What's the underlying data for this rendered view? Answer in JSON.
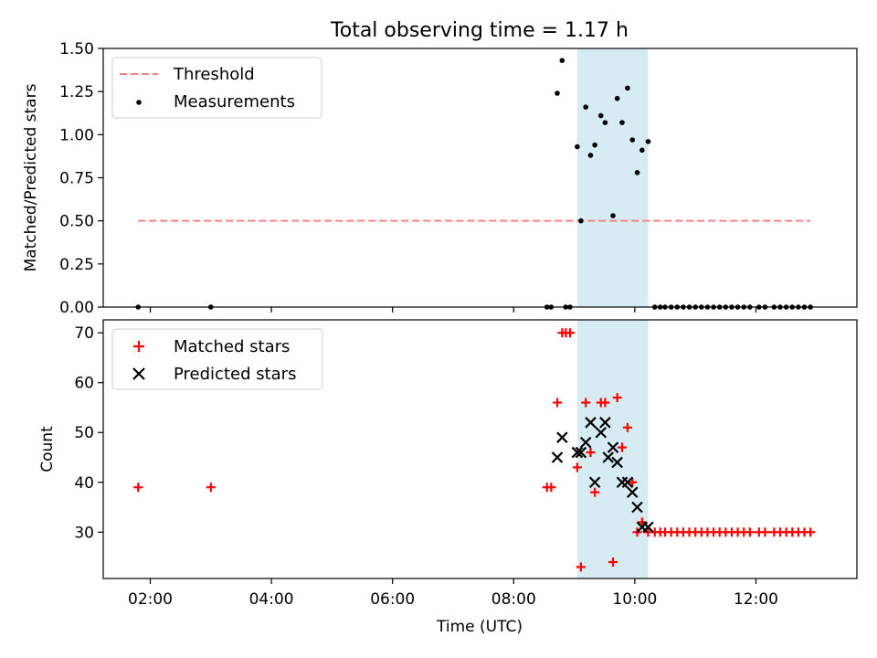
{
  "figure": {
    "title": "Total observing time = 1.17 h"
  },
  "chart_data": [
    {
      "type": "scatter",
      "ylabel": "Matched/Predicted stars",
      "xlabel": "",
      "ylim": [
        0,
        1.5
      ],
      "xlim_hours": [
        1.223,
        13.667
      ],
      "yticks": [
        0,
        0.25,
        0.5,
        0.75,
        1.0,
        1.25,
        1.5
      ],
      "ytick_labels": [
        "0.00",
        "0.25",
        "0.50",
        "0.75",
        "1.00",
        "1.25",
        "1.50"
      ],
      "legend": {
        "placement": "upper-left",
        "entries": [
          "Threshold",
          "Measurements"
        ]
      },
      "grid": false,
      "shaded_interval_hours": [
        9.05,
        10.22
      ],
      "threshold": {
        "name": "Threshold",
        "y": 0.5,
        "x_range_hours": [
          1.8,
          12.9
        ],
        "color": "#ff8080",
        "style": "dashed"
      },
      "series": [
        {
          "name": "Measurements",
          "marker": "dot",
          "color": "#000000",
          "x_hours": [
            1.8,
            3.0,
            8.55,
            8.62,
            8.72,
            8.8,
            8.86,
            8.93,
            9.05,
            9.11,
            9.19,
            9.27,
            9.34,
            9.44,
            9.51,
            9.64,
            9.71,
            9.79,
            9.88,
            9.96,
            10.04,
            10.12,
            10.22,
            10.33,
            10.42,
            10.5,
            10.6,
            10.7,
            10.8,
            10.9,
            11.0,
            11.1,
            11.2,
            11.3,
            11.4,
            11.5,
            11.6,
            11.7,
            11.8,
            11.9,
            12.05,
            12.15,
            12.3,
            12.4,
            12.5,
            12.6,
            12.7,
            12.8,
            12.9
          ],
          "y": [
            0,
            0,
            0,
            0,
            1.24,
            1.43,
            0,
            0,
            0.93,
            0.5,
            1.16,
            0.88,
            0.94,
            1.11,
            1.07,
            0.53,
            1.21,
            1.07,
            1.27,
            0.97,
            0.78,
            0.91,
            0.96,
            0,
            0,
            0,
            0,
            0,
            0,
            0,
            0,
            0,
            0,
            0,
            0,
            0,
            0,
            0,
            0,
            0,
            0,
            0,
            0,
            0,
            0,
            0,
            0,
            0,
            0
          ]
        }
      ]
    },
    {
      "type": "scatter",
      "ylabel": "Count",
      "xlabel": "Time (UTC)",
      "ylim": [
        20.7,
        72.6
      ],
      "xlim_hours": [
        1.223,
        13.667
      ],
      "yticks": [
        30,
        40,
        50,
        60,
        70
      ],
      "ytick_labels": [
        "30",
        "40",
        "50",
        "60",
        "70"
      ],
      "xticks_hours": [
        2,
        4,
        6,
        8,
        10,
        12
      ],
      "xtick_labels": [
        "02:00",
        "04:00",
        "06:00",
        "08:00",
        "10:00",
        "12:00"
      ],
      "legend": {
        "placement": "upper-left",
        "entries": [
          "Matched stars",
          "Predicted stars"
        ]
      },
      "grid": false,
      "shaded_interval_hours": [
        9.05,
        10.22
      ],
      "series": [
        {
          "name": "Matched stars",
          "marker": "plus",
          "color": "#ff0000",
          "x_hours": [
            1.8,
            3.0,
            8.55,
            8.62,
            8.72,
            8.8,
            8.86,
            8.93,
            9.05,
            9.11,
            9.19,
            9.27,
            9.34,
            9.44,
            9.51,
            9.64,
            9.71,
            9.79,
            9.88,
            9.96,
            10.04,
            10.12,
            10.22,
            10.33,
            10.42,
            10.5,
            10.6,
            10.7,
            10.8,
            10.9,
            11.0,
            11.1,
            11.2,
            11.3,
            11.4,
            11.5,
            11.6,
            11.7,
            11.8,
            11.9,
            12.05,
            12.15,
            12.3,
            12.4,
            12.5,
            12.6,
            12.7,
            12.8,
            12.9
          ],
          "y": [
            39,
            39,
            39,
            39,
            56,
            70,
            70,
            70,
            43,
            23,
            56,
            46,
            38,
            56,
            56,
            24,
            57,
            47,
            51,
            40,
            30,
            32,
            30,
            30,
            30,
            30,
            30,
            30,
            30,
            30,
            30,
            30,
            30,
            30,
            30,
            30,
            30,
            30,
            30,
            30,
            30,
            30,
            30,
            30,
            30,
            30,
            30,
            30,
            30
          ]
        },
        {
          "name": "Predicted stars",
          "marker": "x",
          "color": "#000000",
          "x_hours": [
            8.72,
            8.8,
            9.05,
            9.11,
            9.19,
            9.27,
            9.34,
            9.44,
            9.51,
            9.56,
            9.64,
            9.71,
            9.79,
            9.88,
            9.96,
            10.04,
            10.12,
            10.22
          ],
          "y": [
            45,
            49,
            46,
            46,
            48,
            52,
            40,
            50,
            52,
            45,
            47,
            44,
            40,
            40,
            38,
            35,
            31,
            31
          ]
        }
      ]
    }
  ]
}
